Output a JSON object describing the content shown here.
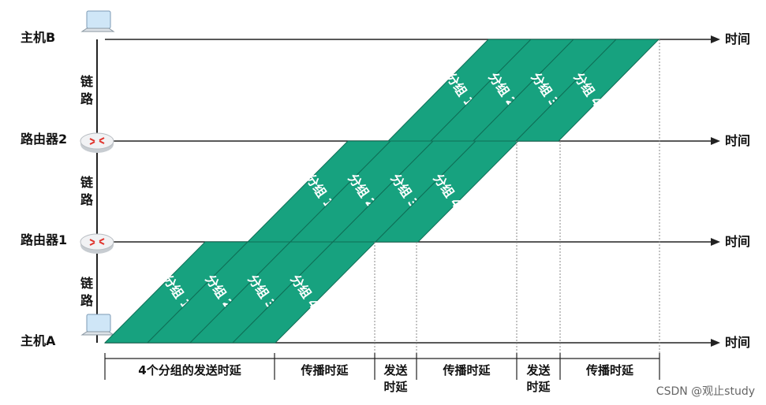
{
  "nodes": [
    {
      "label": "主机B"
    },
    {
      "label": "路由器2"
    },
    {
      "label": "路由器1"
    },
    {
      "label": "主机A"
    }
  ],
  "links": [
    "链路",
    "链路",
    "链路"
  ],
  "time_labels": [
    "时间",
    "时间",
    "时间",
    "时间"
  ],
  "packets": [
    [
      "分组 1",
      "分组 2",
      "分组 3",
      "分组 4"
    ],
    [
      "分组 1",
      "分组 2",
      "分组 3",
      "分组 4"
    ],
    [
      "分组 1",
      "分组 2",
      "分组 3",
      "分组 4"
    ]
  ],
  "delays": [
    "4个分组的发送时延",
    "传播时延",
    "发送时延",
    "传播时延",
    "发送时延",
    "传播时延"
  ],
  "watermark": "CSDN @观止study"
}
